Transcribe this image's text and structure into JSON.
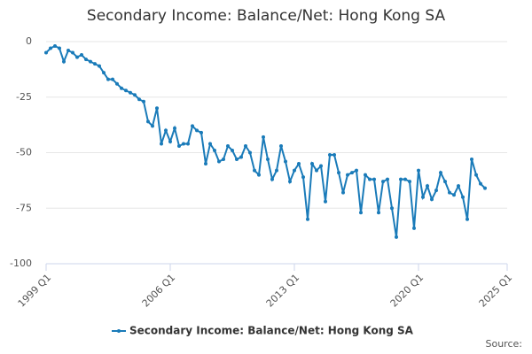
{
  "chart_data": {
    "type": "line",
    "title": "Secondary Income: Balance/Net: Hong Kong SA",
    "source": "Source:",
    "x": [
      1999,
      1999.25,
      1999.5,
      1999.75,
      2000,
      2000.25,
      2000.5,
      2000.75,
      2001,
      2001.25,
      2001.5,
      2001.75,
      2002,
      2002.25,
      2002.5,
      2002.75,
      2003,
      2003.25,
      2003.5,
      2003.75,
      2004,
      2004.25,
      2004.5,
      2004.75,
      2005,
      2005.25,
      2005.5,
      2005.75,
      2006,
      2006.25,
      2006.5,
      2006.75,
      2007,
      2007.25,
      2007.5,
      2007.75,
      2008,
      2008.25,
      2008.5,
      2008.75,
      2009,
      2009.25,
      2009.5,
      2009.75,
      2010,
      2010.25,
      2010.5,
      2010.75,
      2011,
      2011.25,
      2011.5,
      2011.75,
      2012,
      2012.25,
      2012.5,
      2012.75,
      2013,
      2013.25,
      2013.5,
      2013.75,
      2014,
      2014.25,
      2014.5,
      2014.75,
      2015,
      2015.25,
      2015.5,
      2015.75,
      2016,
      2016.25,
      2016.5,
      2016.75,
      2017,
      2017.25,
      2017.5,
      2017.75,
      2018,
      2018.25,
      2018.5,
      2018.75,
      2019,
      2019.25,
      2019.5,
      2019.75,
      2020,
      2020.25,
      2020.5,
      2020.75,
      2021,
      2021.25,
      2021.5,
      2021.75,
      2022,
      2022.25,
      2022.5,
      2022.75,
      2023,
      2023.25,
      2023.5,
      2023.75
    ],
    "series": [
      {
        "name": "Secondary Income: Balance/Net: Hong Kong SA",
        "color": "#1a7bb9",
        "values": [
          -5,
          -3,
          -2,
          -3,
          -9,
          -4,
          -5,
          -7,
          -6,
          -8,
          -9,
          -10,
          -11,
          -14,
          -17,
          -17,
          -19,
          -21,
          -22,
          -23,
          -24,
          -26,
          -27,
          -36,
          -38,
          -30,
          -46,
          -40,
          -45,
          -39,
          -47,
          -46,
          -46,
          -38,
          -40,
          -41,
          -55,
          -46,
          -49,
          -54,
          -53,
          -47,
          -49,
          -53,
          -52,
          -47,
          -50,
          -58,
          -60,
          -43,
          -53,
          -62,
          -58,
          -47,
          -54,
          -63,
          -58,
          -55,
          -61,
          -80,
          -55,
          -58,
          -56,
          -72,
          -51,
          -51,
          -59,
          -68,
          -60,
          -59,
          -58,
          -77,
          -60,
          -62,
          -62,
          -77,
          -63,
          -62,
          -75,
          -88,
          -62,
          -62,
          -63,
          -84,
          -58,
          -70,
          -65,
          -71,
          -67,
          -59,
          -63,
          -68,
          -69,
          -65,
          -70,
          -80,
          -53,
          -60,
          -64,
          -66
        ]
      }
    ],
    "xlim": [
      1999,
      2025
    ],
    "xticks": [
      {
        "value": 1999,
        "label": "1999 Q1"
      },
      {
        "value": 2006,
        "label": "2006 Q1"
      },
      {
        "value": 2013,
        "label": "2013 Q1"
      },
      {
        "value": 2020,
        "label": "2020 Q1"
      },
      {
        "value": 2025,
        "label": "2025 Q1"
      }
    ],
    "ylim": [
      -100,
      0
    ],
    "yticks": [
      0,
      -25,
      -50,
      -75,
      -100
    ],
    "grid": true
  }
}
